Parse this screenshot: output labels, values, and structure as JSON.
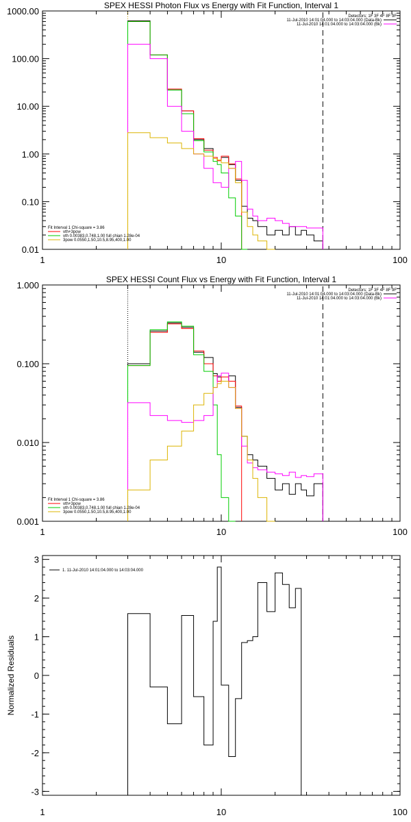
{
  "chart_data": [
    {
      "type": "line",
      "title": "SPEX HESSI Photon Flux vs Energy with Fit Function, Interval 1",
      "xscale": "log",
      "yscale": "log",
      "xlim": [
        1,
        100
      ],
      "ylim": [
        0.01,
        1000
      ],
      "xticks": [
        1,
        10,
        100
      ],
      "xtick_labels": [
        "1",
        "10",
        "100"
      ],
      "yticks": [
        0.01,
        0.1,
        1,
        10,
        100,
        1000
      ],
      "ytick_labels": [
        "0.01",
        "0.10",
        "1.00",
        "10.00",
        "100.00",
        "1000.00"
      ],
      "ylabel": "",
      "vlines": [
        {
          "x": 3,
          "style": "dotted",
          "color": "#c8a000"
        },
        {
          "x": 37,
          "style": "dashed",
          "color": "#000000"
        }
      ],
      "legend_top": [
        "Detectors: 1F 3F 4F 8F 9F",
        "11-Jul-2010 14:01:04.000 to 14:03:04.000 (Data-Bk)",
        "11-Jul-2010 14:01:04.000 to 14:03:04.000 (Bk)"
      ],
      "legend_bottom": [
        "Fit Interval 1   Chi-square = 3.86",
        "vth+3pow",
        "vth 0.00383,0.748,1.00   full chian 1.28e-04",
        "3pow 0.0550,1.50,10.5,8.95,400,1.00"
      ],
      "edges": [
        3,
        4,
        5,
        6,
        7,
        8,
        9,
        9.5,
        10,
        11,
        12,
        13,
        14,
        15,
        16,
        18,
        20,
        22,
        24,
        26,
        28,
        30,
        33,
        37
      ],
      "series": [
        {
          "color": "#000000",
          "values": [
            620,
            120,
            22,
            8,
            2,
            1.3,
            0.8,
            0.75,
            0.85,
            0.6,
            0.28,
            0.08,
            0.045,
            0.04,
            0.03,
            0.02,
            0.025,
            0.02,
            0.03,
            0.02,
            0.025,
            0.02,
            0.015
          ]
        },
        {
          "color": "#ff0000",
          "values": [
            600,
            120,
            23,
            8,
            2.1,
            1.2,
            0.85,
            0.72,
            0.9,
            0.62,
            0.3
          ]
        },
        {
          "color": "#00cc00",
          "values": [
            600,
            120,
            22,
            7,
            1.9,
            1.1,
            0.7,
            0.6,
            0.4,
            0.12,
            0.05,
            0.01
          ]
        },
        {
          "color": "#ff00ff",
          "values": [
            200,
            100,
            10,
            3,
            1.0,
            0.5,
            0.25,
            0.25,
            0.2,
            0.5,
            0.7,
            0.28,
            0.07,
            0.05,
            0.04,
            0.045,
            0.04,
            0.035,
            0.03,
            0.03,
            0.03,
            0.028,
            0.028
          ]
        },
        {
          "color": "#dcb400",
          "values": [
            2.8,
            2.2,
            1.7,
            1.3,
            1.0,
            0.9,
            0.8,
            0.75,
            0.65,
            0.5,
            0.25,
            0.06,
            0.03,
            0.02,
            0.015,
            0.01
          ]
        }
      ]
    },
    {
      "type": "line",
      "title": "SPEX HESSI Count Flux vs Energy with Fit Function, Interval 1",
      "xscale": "log",
      "yscale": "log",
      "xlim": [
        1,
        100
      ],
      "ylim": [
        0.001,
        1
      ],
      "xticks": [
        1,
        10,
        100
      ],
      "xtick_labels": [
        "1",
        "10",
        "100"
      ],
      "yticks": [
        0.001,
        0.01,
        0.1,
        1
      ],
      "ytick_labels": [
        "0.001",
        "0.010",
        "0.100",
        "1.000"
      ],
      "ylabel": "",
      "vlines": [
        {
          "x": 3,
          "style": "dotted",
          "color": "#000000"
        },
        {
          "x": 37,
          "style": "dashed",
          "color": "#000000"
        }
      ],
      "legend_top": [
        "Detectors: 1F 3F 4F 8F 9F",
        "11-Jul-2010 14:01:04.000 to 14:03:04.000 (Data-Bk)",
        "11-Jul-2010 14:01:04.000 to 14:03:04.000 (Bk)"
      ],
      "legend_bottom": [
        "Fit Interval 1   Chi-square = 3.86",
        "vth+3pow",
        "vth 0.00383,0.748,1.00   full chian 1.28e-04",
        "3pow 0.0550,1.50,10.5,8.95,400,1.00"
      ],
      "edges": [
        3,
        4,
        5,
        6,
        7,
        8,
        9,
        9.5,
        10,
        11,
        12,
        13,
        14,
        15,
        16,
        18,
        20,
        22,
        24,
        26,
        28,
        30,
        33,
        37
      ],
      "series": [
        {
          "color": "#000000",
          "values": [
            0.1,
            0.26,
            0.33,
            0.29,
            0.14,
            0.12,
            0.075,
            0.068,
            0.06,
            0.07,
            0.028,
            0.012,
            0.007,
            0.006,
            0.005,
            0.0035,
            0.0025,
            0.003,
            0.0022,
            0.003,
            0.0025,
            0.0021,
            0.003
          ]
        },
        {
          "color": "#ff0000",
          "values": [
            0.095,
            0.25,
            0.32,
            0.28,
            0.145,
            0.1,
            0.07,
            0.06,
            0.068,
            0.06,
            0.029
          ]
        },
        {
          "color": "#00cc00",
          "values": [
            0.095,
            0.27,
            0.34,
            0.3,
            0.13,
            0.08,
            0.03,
            0.007,
            0.002,
            0.001
          ]
        },
        {
          "color": "#ff00ff",
          "values": [
            0.032,
            0.022,
            0.019,
            0.018,
            0.019,
            0.022,
            0.05,
            0.07,
            0.076,
            0.05,
            0.027,
            0.009,
            0.0055,
            0.0048,
            0.0045,
            0.0042,
            0.004,
            0.0038,
            0.0042,
            0.0036,
            0.0038,
            0.0037,
            0.004
          ]
        },
        {
          "color": "#dcb400",
          "values": [
            0.0025,
            0.006,
            0.009,
            0.014,
            0.03,
            0.042,
            0.05,
            0.056,
            0.06,
            0.05,
            0.027,
            0.012,
            0.006,
            0.0035,
            0.002,
            0.001
          ]
        }
      ]
    },
    {
      "type": "line",
      "title": "",
      "xscale": "log",
      "yscale": "linear",
      "xlim": [
        1,
        100
      ],
      "ylim": [
        -3.1,
        3.1
      ],
      "xticks": [
        1,
        10,
        100
      ],
      "xtick_labels": [
        "1",
        "10",
        "100"
      ],
      "yticks": [
        -3,
        -2,
        -1,
        0,
        1,
        2,
        3
      ],
      "ytick_labels": [
        "-3",
        "-2",
        "-1",
        "0",
        "1",
        "2",
        "3"
      ],
      "ylabel": "Normalized Residuals",
      "legend_top": [
        "1. 11-Jul-2010 14:01:04.000 to 14:03:04.000"
      ],
      "edges": [
        3,
        4,
        5,
        6,
        7,
        8,
        9,
        9.5,
        10,
        11,
        12,
        13,
        14,
        15,
        16,
        18,
        20,
        22,
        24,
        26,
        28,
        30,
        33,
        37
      ],
      "series": [
        {
          "color": "#000000",
          "values": [
            1.6,
            -0.3,
            -1.25,
            1.55,
            -0.55,
            -1.8,
            1.4,
            2.8,
            -0.25,
            -2.1,
            -0.6,
            0.85,
            0.9,
            1.0,
            2.4,
            1.65,
            2.65,
            2.35,
            1.75,
            2.25
          ]
        }
      ]
    }
  ]
}
